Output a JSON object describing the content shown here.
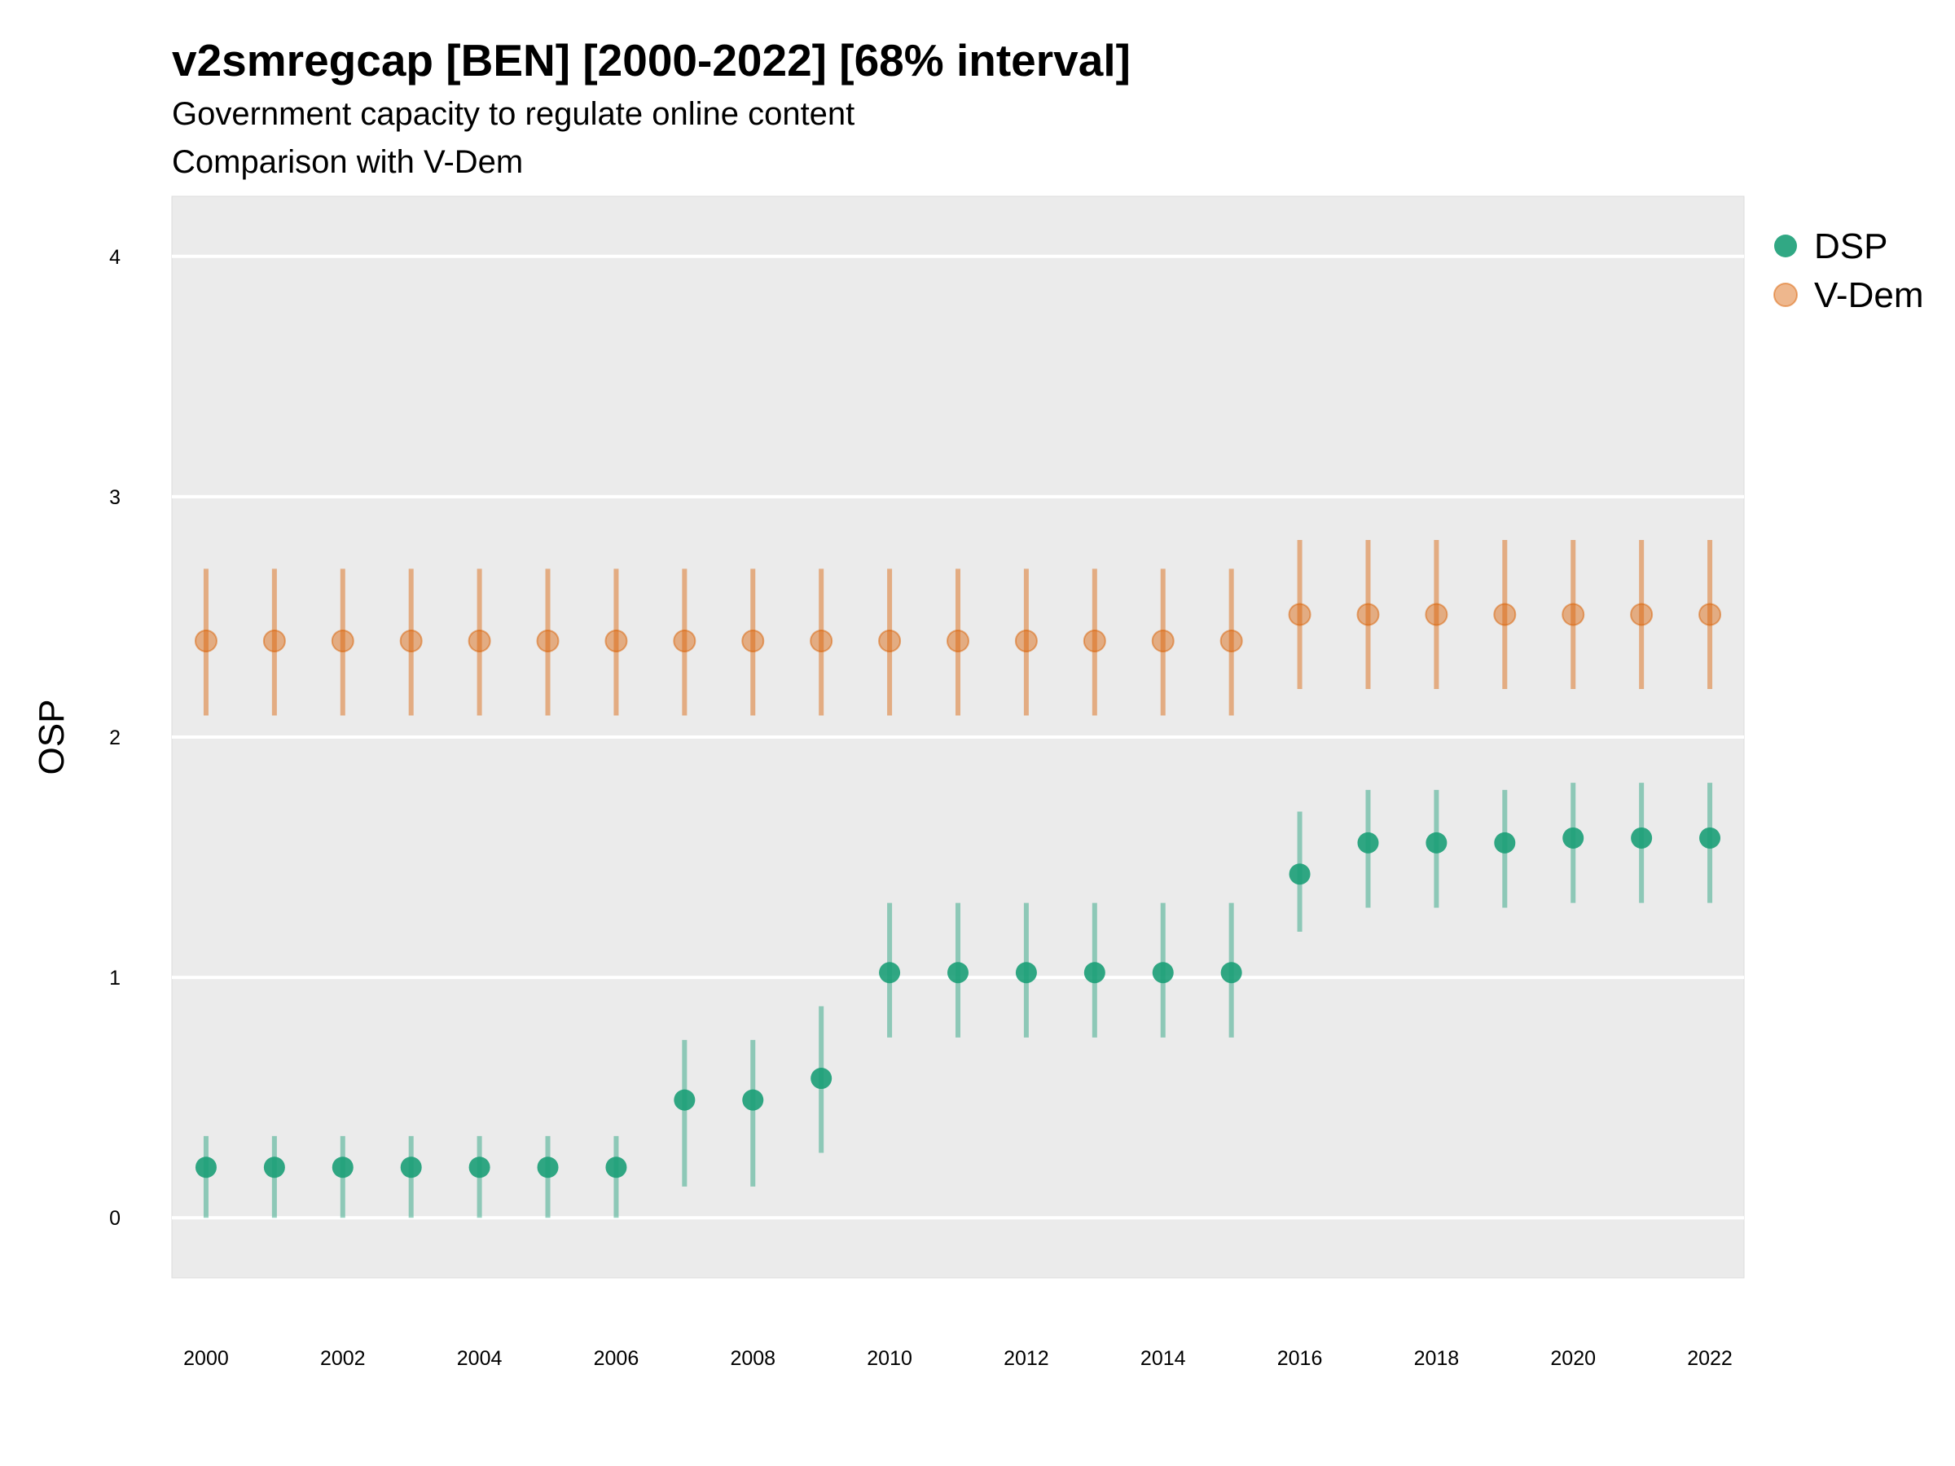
{
  "chart_data": {
    "type": "scatter",
    "title": "v2smregcap [BEN] [2000-2022] [68% interval]",
    "subtitle_lines": [
      "Government capacity to regulate online content",
      "Comparison with V-Dem"
    ],
    "xlabel": "",
    "ylabel": "OSP",
    "xlim": [
      1999.5,
      2022.5
    ],
    "ylim": [
      -0.25,
      4.25
    ],
    "x_ticks": [
      2000,
      2002,
      2004,
      2006,
      2008,
      2010,
      2012,
      2014,
      2016,
      2018,
      2020,
      2022
    ],
    "y_ticks": [
      0,
      1,
      2,
      3,
      4
    ],
    "grid": true,
    "legend_position": "right",
    "series": [
      {
        "name": "DSP",
        "color": "#1b9e77",
        "x": [
          2000,
          2001,
          2002,
          2003,
          2004,
          2005,
          2006,
          2007,
          2008,
          2009,
          2010,
          2011,
          2012,
          2013,
          2014,
          2015,
          2016,
          2017,
          2018,
          2019,
          2020,
          2021,
          2022
        ],
        "y": [
          0.21,
          0.21,
          0.21,
          0.21,
          0.21,
          0.21,
          0.21,
          0.49,
          0.49,
          0.58,
          1.02,
          1.02,
          1.02,
          1.02,
          1.02,
          1.02,
          1.43,
          1.56,
          1.56,
          1.56,
          1.58,
          1.58,
          1.58
        ],
        "lower": [
          0.0,
          0.0,
          0.0,
          0.0,
          0.0,
          0.0,
          0.0,
          0.13,
          0.13,
          0.27,
          0.75,
          0.75,
          0.75,
          0.75,
          0.75,
          0.75,
          1.19,
          1.29,
          1.29,
          1.29,
          1.31,
          1.31,
          1.31
        ],
        "upper": [
          0.34,
          0.34,
          0.34,
          0.34,
          0.34,
          0.34,
          0.34,
          0.74,
          0.74,
          0.88,
          1.31,
          1.31,
          1.31,
          1.31,
          1.31,
          1.31,
          1.69,
          1.78,
          1.78,
          1.78,
          1.81,
          1.81,
          1.81
        ]
      },
      {
        "name": "V-Dem",
        "color": "#d95f02",
        "x": [
          2000,
          2001,
          2002,
          2003,
          2004,
          2005,
          2006,
          2007,
          2008,
          2009,
          2010,
          2011,
          2012,
          2013,
          2014,
          2015,
          2016,
          2017,
          2018,
          2019,
          2020,
          2021,
          2022
        ],
        "y": [
          2.4,
          2.4,
          2.4,
          2.4,
          2.4,
          2.4,
          2.4,
          2.4,
          2.4,
          2.4,
          2.4,
          2.4,
          2.4,
          2.4,
          2.4,
          2.4,
          2.51,
          2.51,
          2.51,
          2.51,
          2.51,
          2.51,
          2.51
        ],
        "lower": [
          2.09,
          2.09,
          2.09,
          2.09,
          2.09,
          2.09,
          2.09,
          2.09,
          2.09,
          2.09,
          2.09,
          2.09,
          2.09,
          2.09,
          2.09,
          2.09,
          2.2,
          2.2,
          2.2,
          2.2,
          2.2,
          2.2,
          2.2
        ],
        "upper": [
          2.7,
          2.7,
          2.7,
          2.7,
          2.7,
          2.7,
          2.7,
          2.7,
          2.7,
          2.7,
          2.7,
          2.7,
          2.7,
          2.7,
          2.7,
          2.7,
          2.82,
          2.82,
          2.82,
          2.82,
          2.82,
          2.82,
          2.82
        ]
      }
    ]
  }
}
